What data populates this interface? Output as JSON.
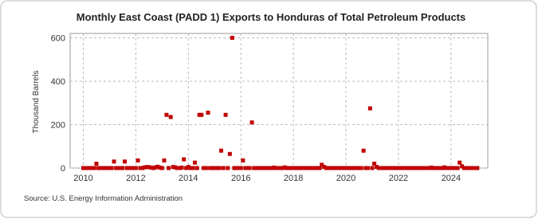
{
  "chart_data": {
    "type": "scatter",
    "title": "Monthly East Coast (PADD 1) Exports to Honduras of Total Petroleum Products",
    "y_label": "Thousand Barrels",
    "source": "Source: U.S. Energy Information Administration",
    "xlim": [
      2009.5,
      2025.4
    ],
    "xticks": [
      2010,
      2012,
      2014,
      2016,
      2018,
      2020,
      2022,
      2024
    ],
    "ylim": [
      0,
      620
    ],
    "yticks": [
      0,
      200,
      400,
      600
    ],
    "grid": true,
    "x": [
      2010,
      2010.08,
      2010.17,
      2010.25,
      2010.33,
      2010.42,
      2010.5,
      2010.58,
      2010.67,
      2010.75,
      2010.83,
      2010.92,
      2011,
      2011.08,
      2011.17,
      2011.25,
      2011.33,
      2011.42,
      2011.5,
      2011.58,
      2011.67,
      2011.75,
      2011.83,
      2011.92,
      2012,
      2012.08,
      2012.17,
      2012.25,
      2012.33,
      2012.42,
      2012.5,
      2012.58,
      2012.67,
      2012.75,
      2012.83,
      2012.92,
      2013,
      2013.08,
      2013.17,
      2013.25,
      2013.33,
      2013.42,
      2013.5,
      2013.58,
      2013.67,
      2013.75,
      2013.83,
      2013.92,
      2014,
      2014.08,
      2014.17,
      2014.25,
      2014.33,
      2014.42,
      2014.5,
      2014.58,
      2014.67,
      2014.75,
      2014.83,
      2014.92,
      2015,
      2015.08,
      2015.17,
      2015.25,
      2015.33,
      2015.42,
      2015.5,
      2015.58,
      2015.67,
      2015.75,
      2015.83,
      2015.92,
      2016,
      2016.08,
      2016.17,
      2016.25,
      2016.33,
      2016.42,
      2016.5,
      2016.58,
      2016.67,
      2016.75,
      2016.83,
      2016.92,
      2017,
      2017.08,
      2017.17,
      2017.25,
      2017.33,
      2017.42,
      2017.5,
      2017.58,
      2017.67,
      2017.75,
      2017.83,
      2017.92,
      2018,
      2018.08,
      2018.17,
      2018.25,
      2018.33,
      2018.42,
      2018.5,
      2018.58,
      2018.67,
      2018.75,
      2018.83,
      2018.92,
      2019,
      2019.08,
      2019.17,
      2019.25,
      2019.33,
      2019.42,
      2019.5,
      2019.58,
      2019.67,
      2019.75,
      2019.83,
      2019.92,
      2020,
      2020.08,
      2020.17,
      2020.25,
      2020.33,
      2020.42,
      2020.5,
      2020.58,
      2020.67,
      2020.75,
      2020.83,
      2020.92,
      2021,
      2021.08,
      2021.17,
      2021.25,
      2021.33,
      2021.42,
      2021.5,
      2021.58,
      2021.67,
      2021.75,
      2021.83,
      2021.92,
      2022,
      2022.08,
      2022.17,
      2022.25,
      2022.33,
      2022.42,
      2022.5,
      2022.58,
      2022.67,
      2022.75,
      2022.83,
      2022.92,
      2023,
      2023.08,
      2023.17,
      2023.25,
      2023.33,
      2023.42,
      2023.5,
      2023.58,
      2023.67,
      2023.75,
      2023.83,
      2023.92,
      2024,
      2024.08,
      2024.17,
      2024.25,
      2024.33,
      2024.42,
      2024.5,
      2024.58,
      2024.67,
      2024.75,
      2024.83,
      2024.92,
      2025
    ],
    "series": [
      {
        "color": "#c00000",
        "values": [
          0,
          0,
          0,
          0,
          0,
          0,
          20,
          0,
          0,
          0,
          0,
          0,
          0,
          0,
          30,
          0,
          0,
          0,
          0,
          30,
          0,
          0,
          0,
          0,
          0,
          35,
          0,
          0,
          3,
          5,
          4,
          2,
          0,
          3,
          6,
          2,
          0,
          35,
          245,
          0,
          235,
          5,
          3,
          0,
          0,
          2,
          40,
          0,
          5,
          0,
          0,
          25,
          0,
          245,
          245,
          0,
          0,
          255,
          0,
          0,
          0,
          0,
          0,
          80,
          0,
          245,
          0,
          65,
          600,
          0,
          0,
          0,
          0,
          35,
          0,
          0,
          0,
          210,
          0,
          0,
          0,
          0,
          0,
          0,
          0,
          0,
          0,
          2,
          0,
          0,
          0,
          0,
          3,
          0,
          0,
          0,
          0,
          0,
          0,
          0,
          0,
          0,
          0,
          0,
          0,
          0,
          0,
          0,
          0,
          15,
          5,
          0,
          0,
          0,
          0,
          0,
          0,
          0,
          0,
          0,
          0,
          0,
          0,
          0,
          0,
          0,
          0,
          0,
          80,
          0,
          0,
          275,
          0,
          20,
          5,
          0,
          0,
          0,
          0,
          0,
          0,
          0,
          0,
          0,
          0,
          0,
          0,
          0,
          0,
          0,
          0,
          0,
          0,
          0,
          0,
          0,
          0,
          0,
          0,
          2,
          0,
          0,
          0,
          0,
          0,
          3,
          0,
          0,
          0,
          0,
          0,
          0,
          25,
          8,
          0,
          0,
          0,
          0,
          0,
          0,
          0
        ]
      }
    ]
  }
}
